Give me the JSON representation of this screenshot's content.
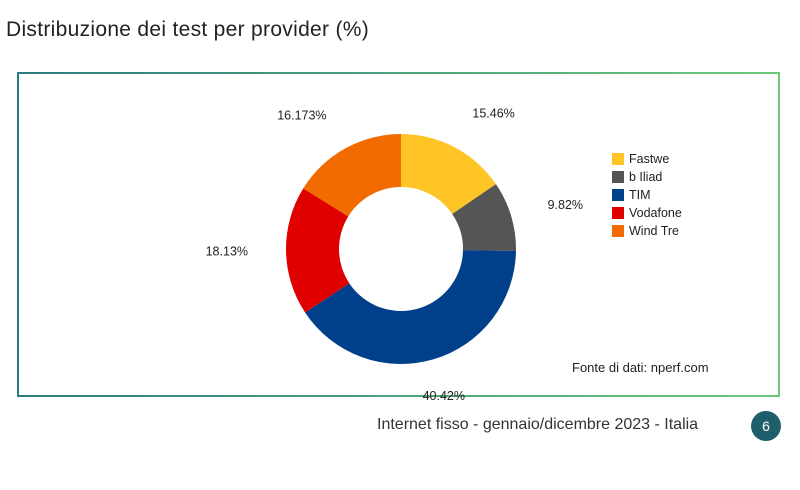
{
  "page": {
    "title": "Distribuzione dei test per provider (%)",
    "footer": "Internet fisso - gennaio/dicembre 2023 - Italia",
    "page_number": "6",
    "source": "Fonte di dati: nperf.com"
  },
  "chart_data": {
    "type": "pie",
    "subtype": "donut",
    "title": "",
    "categories": [
      "Fastwe",
      "b Iliad",
      "TIM",
      "Vodafone",
      "Wind Tre"
    ],
    "values": [
      15.46,
      9.82,
      40.42,
      18.13,
      16.173
    ],
    "labels": [
      "15.46%",
      "9.82%",
      "40.42%",
      "18.13%",
      "16.173%"
    ],
    "colors": [
      "#FFC425",
      "#555555",
      "#003F8A",
      "#E00000",
      "#F26B00"
    ],
    "legend_position": "right"
  }
}
